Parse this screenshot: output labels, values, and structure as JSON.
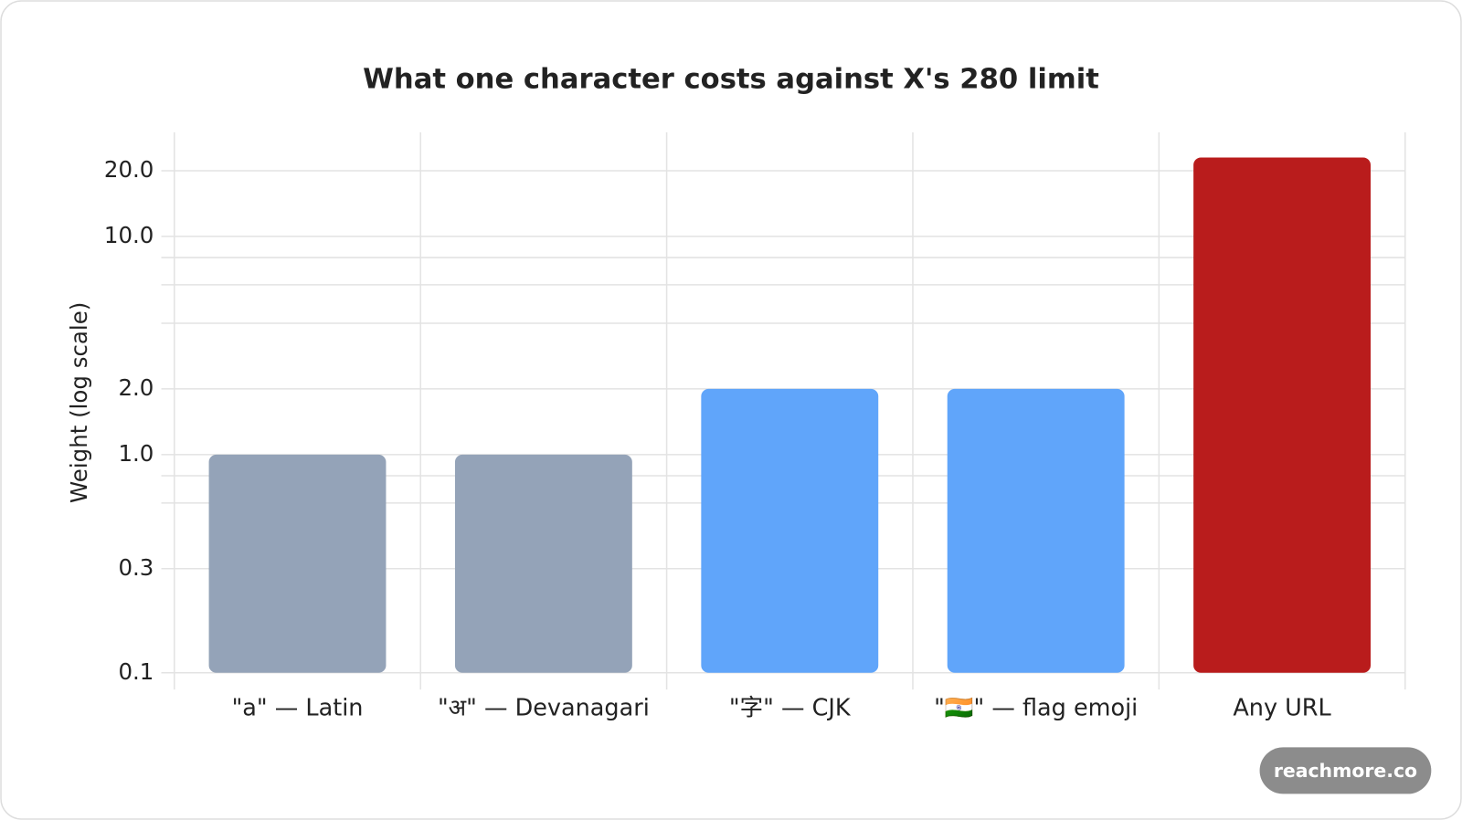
{
  "chart_data": {
    "type": "bar",
    "title": "What one character costs against X's 280 limit",
    "y_label": "Weight (log scale)",
    "categories": [
      "\"a\" — Latin",
      "\"अ\" — Devanagari",
      "\"字\" — CJK",
      "\"🇮🇳\" — flag emoji",
      "Any URL"
    ],
    "values": [
      1,
      1,
      2,
      2,
      23
    ],
    "colors": [
      "#94a3b8",
      "#94a3b8",
      "#60a5fa",
      "#60a5fa",
      "#b91c1c"
    ],
    "log_scale": true,
    "grid": true,
    "ylim": [
      0.1,
      30
    ],
    "yticks": [
      0.1,
      0.3,
      {
        "value": 1,
        "label": "1.0"
      },
      {
        "value": 2,
        "label": "2.0"
      },
      {
        "value": 10,
        "label": "10.0"
      },
      {
        "value": 20,
        "label": "20.0"
      }
    ],
    "minor_yticks": [
      0.6,
      0.8,
      4,
      6,
      8
    ],
    "watermark": "reachmore.co"
  }
}
